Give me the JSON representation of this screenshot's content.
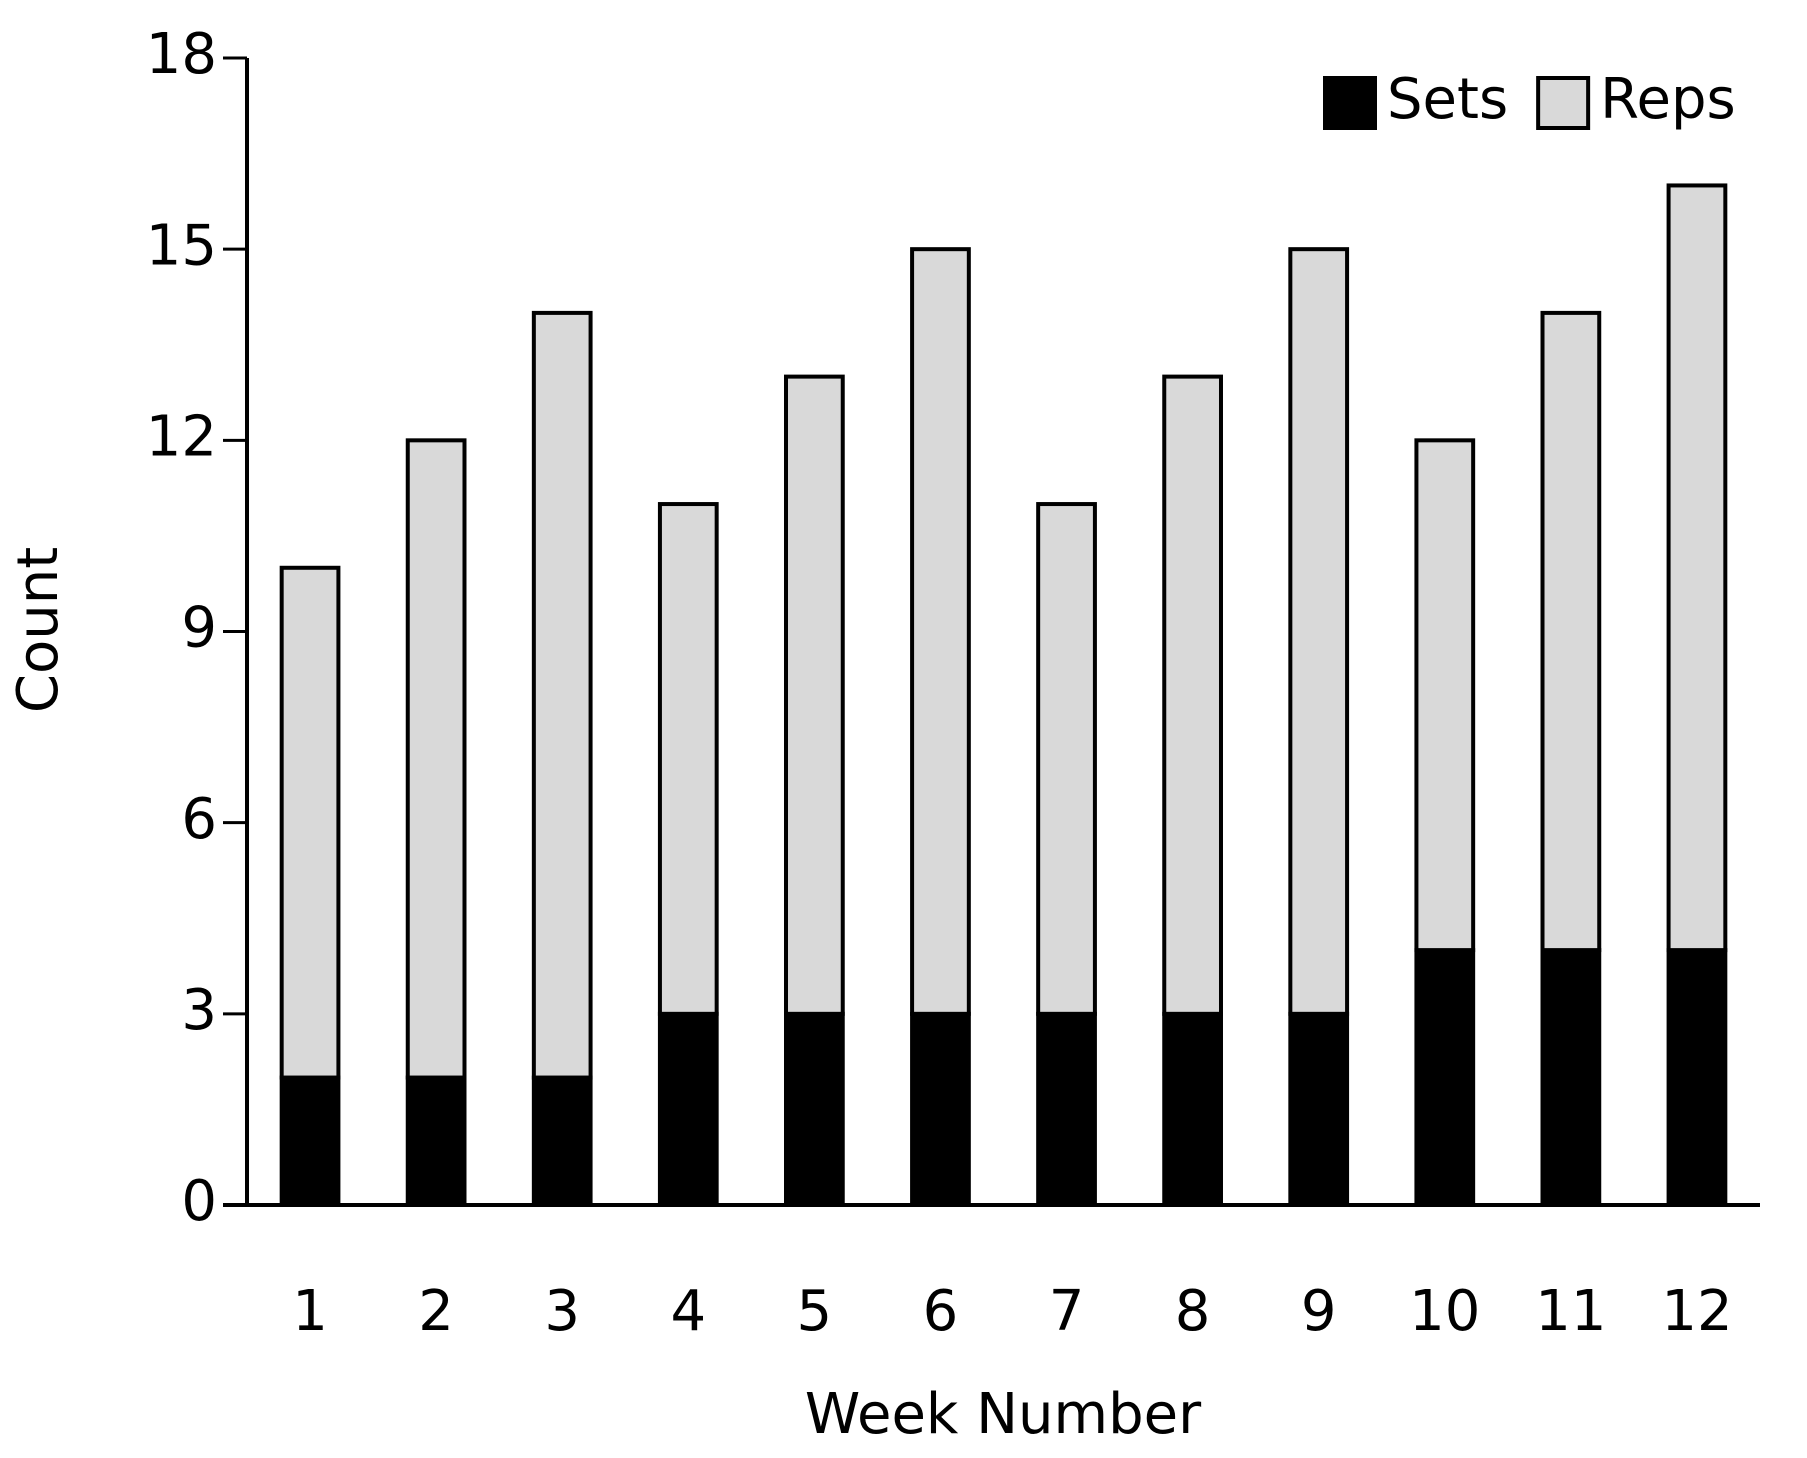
{
  "chart_data": {
    "type": "stacked-bar",
    "x_label": "Week Number",
    "y_label": "Count",
    "categories": [
      "1",
      "2",
      "3",
      "4",
      "5",
      "6",
      "7",
      "8",
      "9",
      "10",
      "11",
      "12"
    ],
    "series": [
      {
        "name": "Sets",
        "color": "#000000",
        "values": [
          2,
          2,
          2,
          3,
          3,
          3,
          3,
          3,
          3,
          4,
          4,
          4
        ]
      },
      {
        "name": "Reps",
        "color": "#d9d9d9",
        "values": [
          8,
          10,
          12,
          8,
          10,
          12,
          8,
          10,
          12,
          8,
          10,
          12
        ]
      }
    ],
    "ylim": [
      0,
      18
    ],
    "yticks": [
      0,
      3,
      6,
      9,
      12,
      15,
      18
    ],
    "legend": "upper right"
  }
}
